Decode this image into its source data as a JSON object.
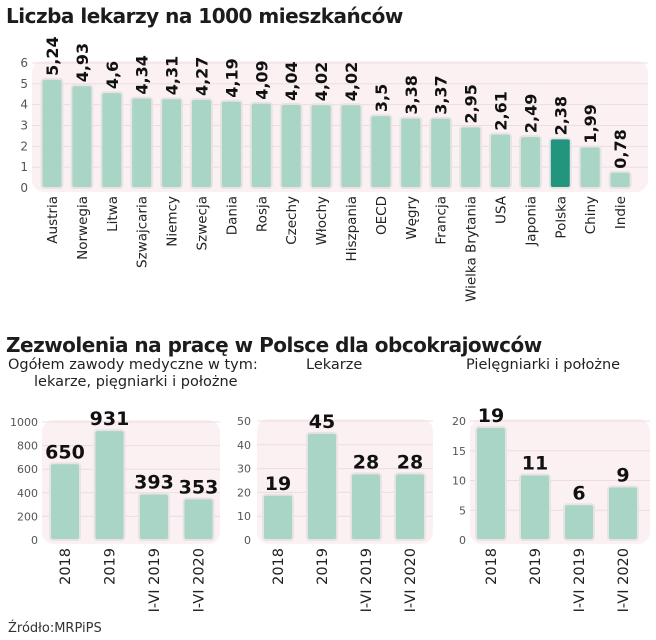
{
  "titles": {
    "main": "Liczba lekarzy na 1000 mieszkańców",
    "second": "Zezwolenia na pracę w Polsce dla obcokrajowców"
  },
  "subtitles": {
    "panel1_line1": "Ogółem zawody medyczne w tym:",
    "panel1_line2": "lekarze, pięgniarki i położne",
    "panel2": "Lekarze",
    "panel3": "Pielęgniarki i położne"
  },
  "source": "Źródło:MRPiPS",
  "colors": {
    "bar": "#a8d5c6",
    "bar_highlight": "#23957e",
    "bar_border": "#e9e4e4",
    "plot_bg": "#fbf1f3",
    "grid": "#ecdcdf"
  },
  "chart_data": [
    {
      "type": "bar",
      "title": "Liczba lekarzy na 1000 mieszkańców",
      "xlabel": "",
      "ylabel": "",
      "ylim": [
        0,
        6
      ],
      "yticks": [
        "0",
        "1",
        "2",
        "3",
        "4",
        "5",
        "6"
      ],
      "grid": true,
      "categories": [
        "Austria",
        "Norwegia",
        "Litwa",
        "Szwajcaria",
        "Niemcy",
        "Szwecja",
        "Dania",
        "Rosja",
        "Czechy",
        "Włochy",
        "Hiszpania",
        "OECD",
        "Węgry",
        "Francja",
        "Wielka Brytania",
        "USA",
        "Japonia",
        "Polska",
        "Chiny",
        "Indie"
      ],
      "values": [
        5.24,
        4.93,
        4.6,
        4.34,
        4.31,
        4.27,
        4.19,
        4.09,
        4.04,
        4.02,
        4.02,
        3.5,
        3.38,
        3.37,
        2.95,
        2.61,
        2.49,
        2.38,
        1.99,
        0.78
      ],
      "value_labels": [
        "5,24",
        "4,93",
        "4,6",
        "4,34",
        "4,31",
        "4,27",
        "4,19",
        "4,09",
        "4,04",
        "4,02",
        "4,02",
        "3,5",
        "3,38",
        "3,37",
        "2,95",
        "2,61",
        "2,49",
        "2,38",
        "1,99",
        "0,78"
      ],
      "highlight": "Polska"
    },
    {
      "type": "bar",
      "title": "Ogółem zawody medyczne w tym: lekarze, pięgniarki i położne",
      "ylim": [
        0,
        1000
      ],
      "yticks": [
        "0",
        "200",
        "400",
        "600",
        "800",
        "1000"
      ],
      "grid": true,
      "categories": [
        "2018",
        "2019",
        "I-VI 2019",
        "I-VI 2020"
      ],
      "values": [
        650,
        931,
        393,
        353
      ],
      "value_labels": [
        "650",
        "931",
        "393",
        "353"
      ]
    },
    {
      "type": "bar",
      "title": "Lekarze",
      "ylim": [
        0,
        50
      ],
      "yticks": [
        "0",
        "10",
        "20",
        "30",
        "40",
        "50"
      ],
      "grid": true,
      "categories": [
        "2018",
        "2019",
        "I-VI 2019",
        "I-VI 2020"
      ],
      "values": [
        19,
        45,
        28,
        28
      ],
      "value_labels": [
        "19",
        "45",
        "28",
        "28"
      ]
    },
    {
      "type": "bar",
      "title": "Pielęgniarki i położne",
      "ylim": [
        0,
        20
      ],
      "yticks": [
        "0",
        "5",
        "10",
        "15",
        "20"
      ],
      "grid": true,
      "categories": [
        "2018",
        "2019",
        "I-VI 2019",
        "I-VI 2020"
      ],
      "values": [
        19,
        11,
        6,
        9
      ],
      "value_labels": [
        "19",
        "11",
        "6",
        "9"
      ]
    }
  ]
}
